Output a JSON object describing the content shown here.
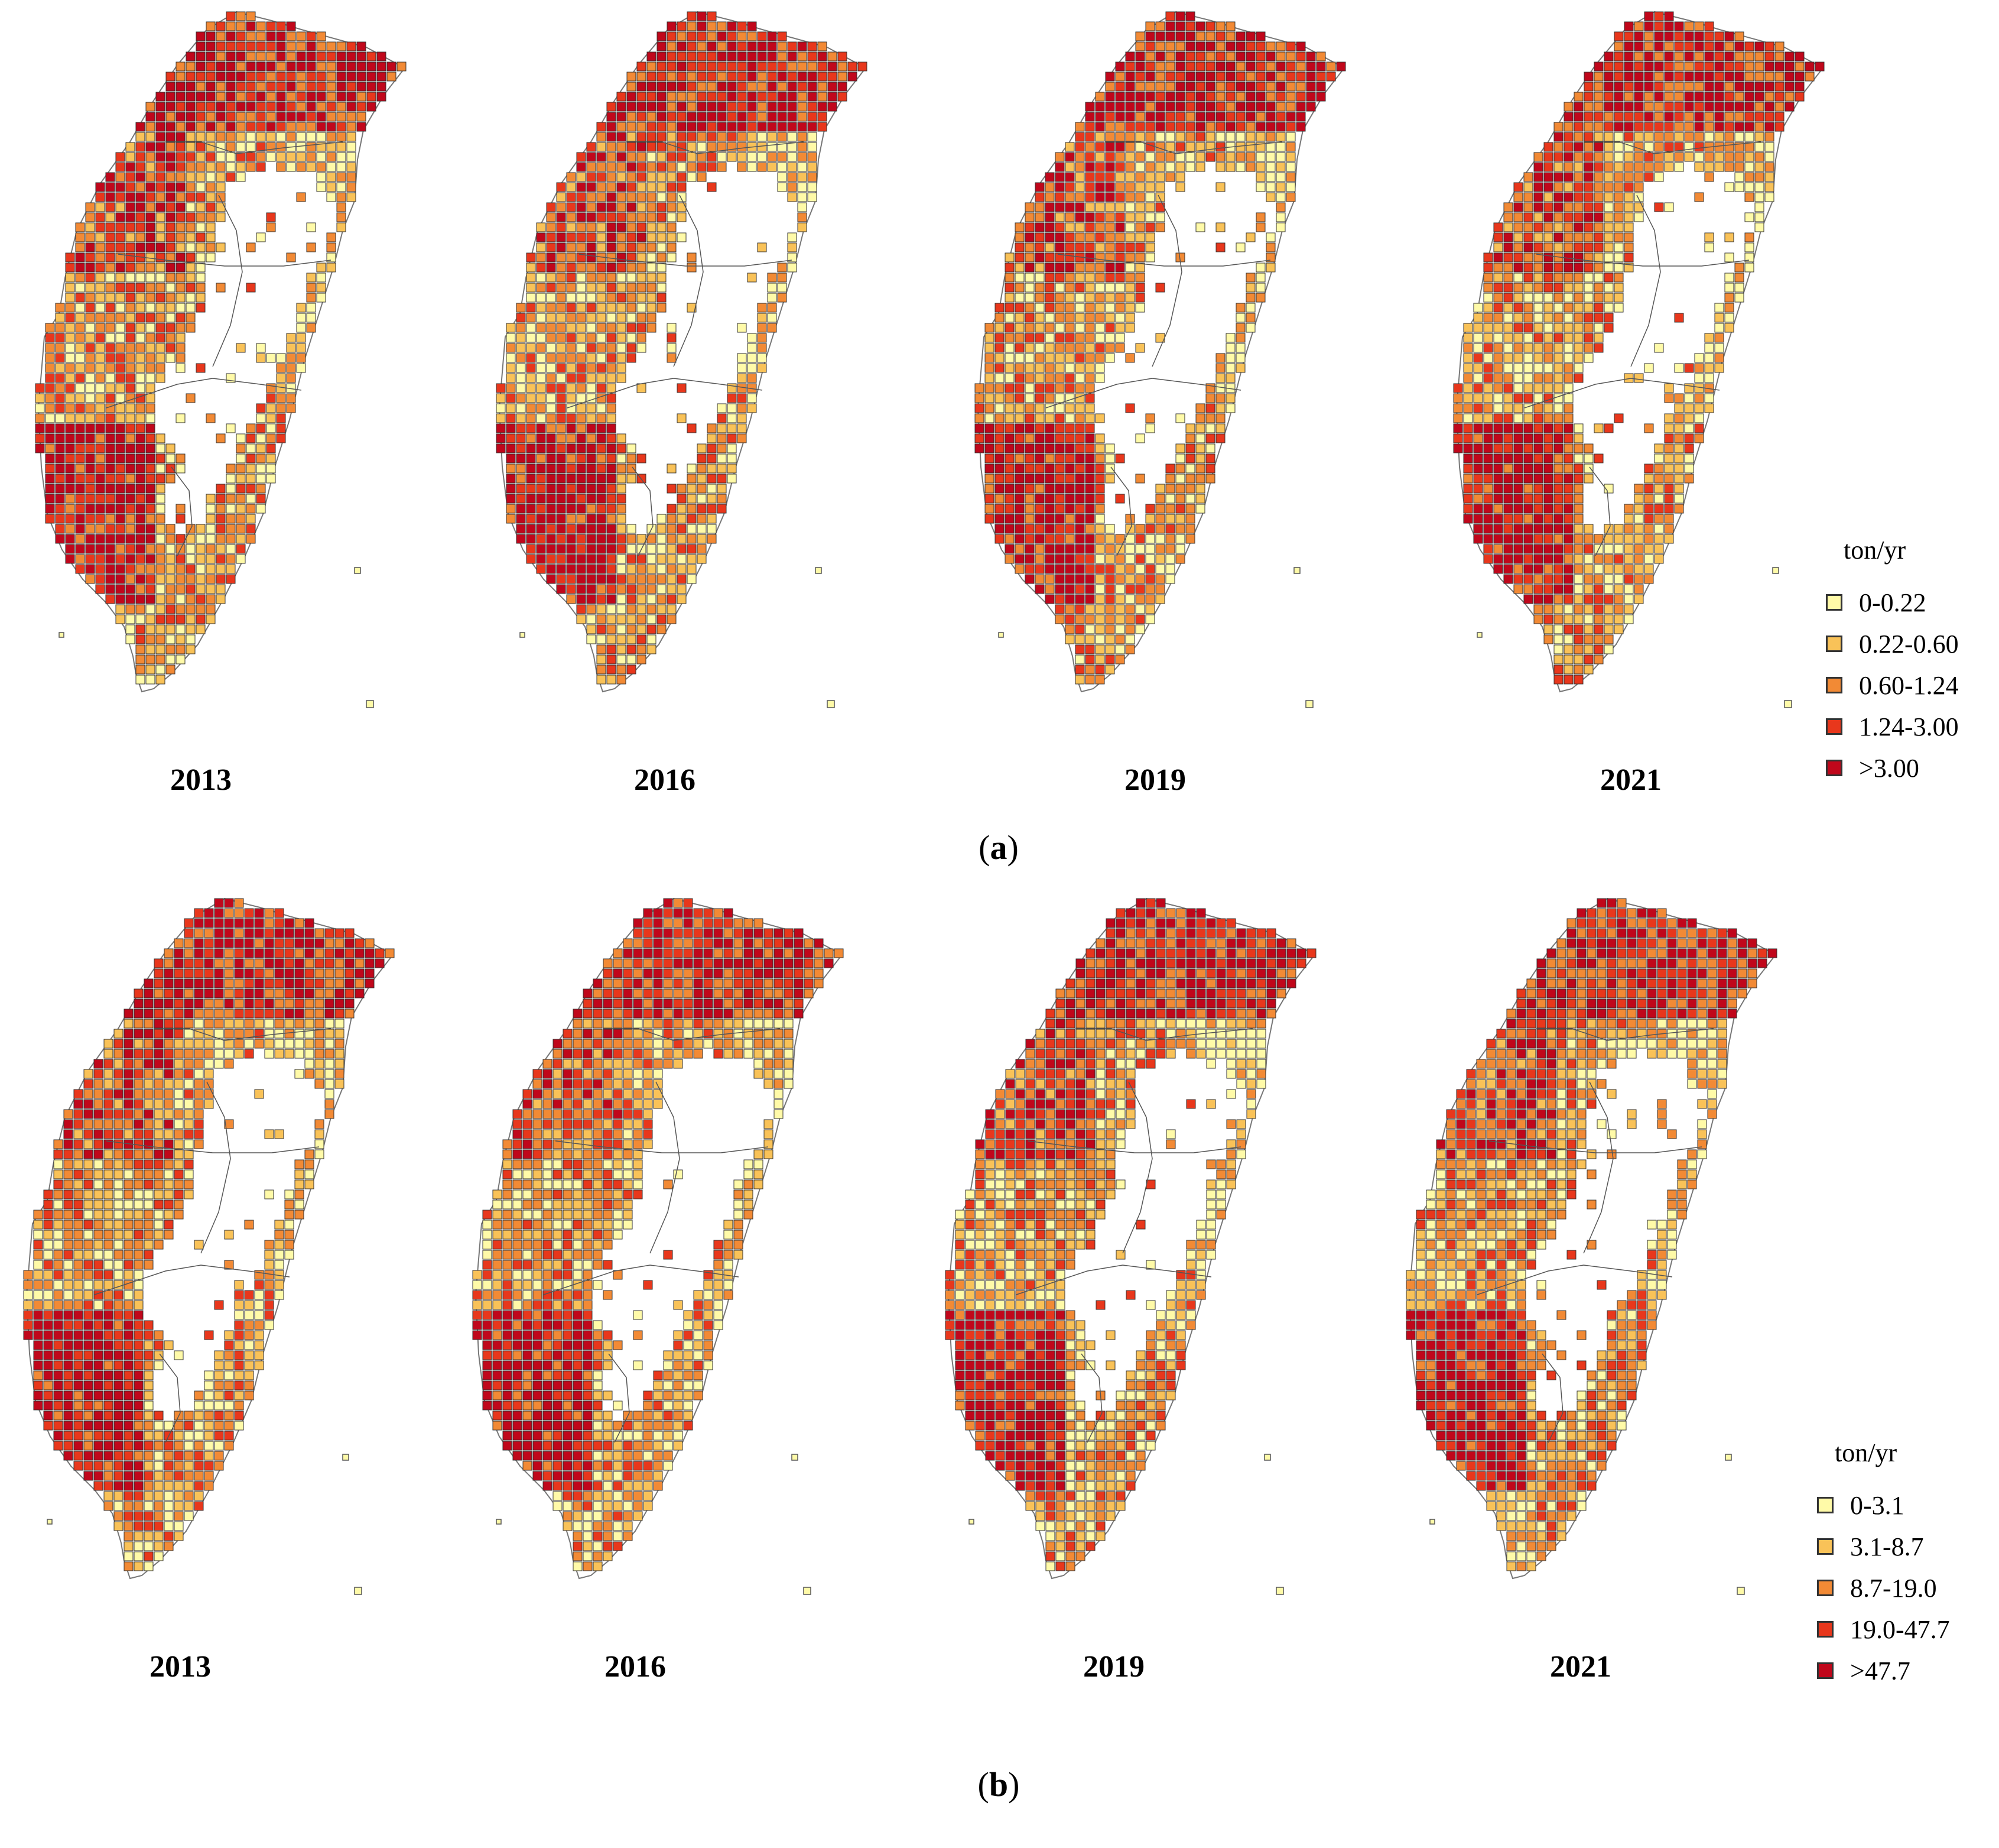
{
  "palette": [
    "#fffaa8",
    "#f9c258",
    "#f28a35",
    "#e8371c",
    "#c0071b"
  ],
  "panels": [
    {
      "label_letter": "a",
      "label_prefix": "(",
      "label_suffix": ")",
      "years": [
        "2013",
        "2016",
        "2019",
        "2021"
      ],
      "legend": {
        "unit": "ton/yr",
        "classes": [
          "0-0.22",
          "0.22-0.60",
          "0.60-1.24",
          "1.24-3.00",
          ">3.00"
        ]
      }
    },
    {
      "label_letter": "b",
      "label_prefix": "(",
      "label_suffix": ")",
      "years": [
        "2013",
        "2016",
        "2019",
        "2021"
      ],
      "legend": {
        "unit": "ton/yr",
        "classes": [
          "0-3.1",
          "3.1-8.7",
          "8.7-19.0",
          "19.0-47.7",
          ">47.7"
        ]
      }
    }
  ]
}
